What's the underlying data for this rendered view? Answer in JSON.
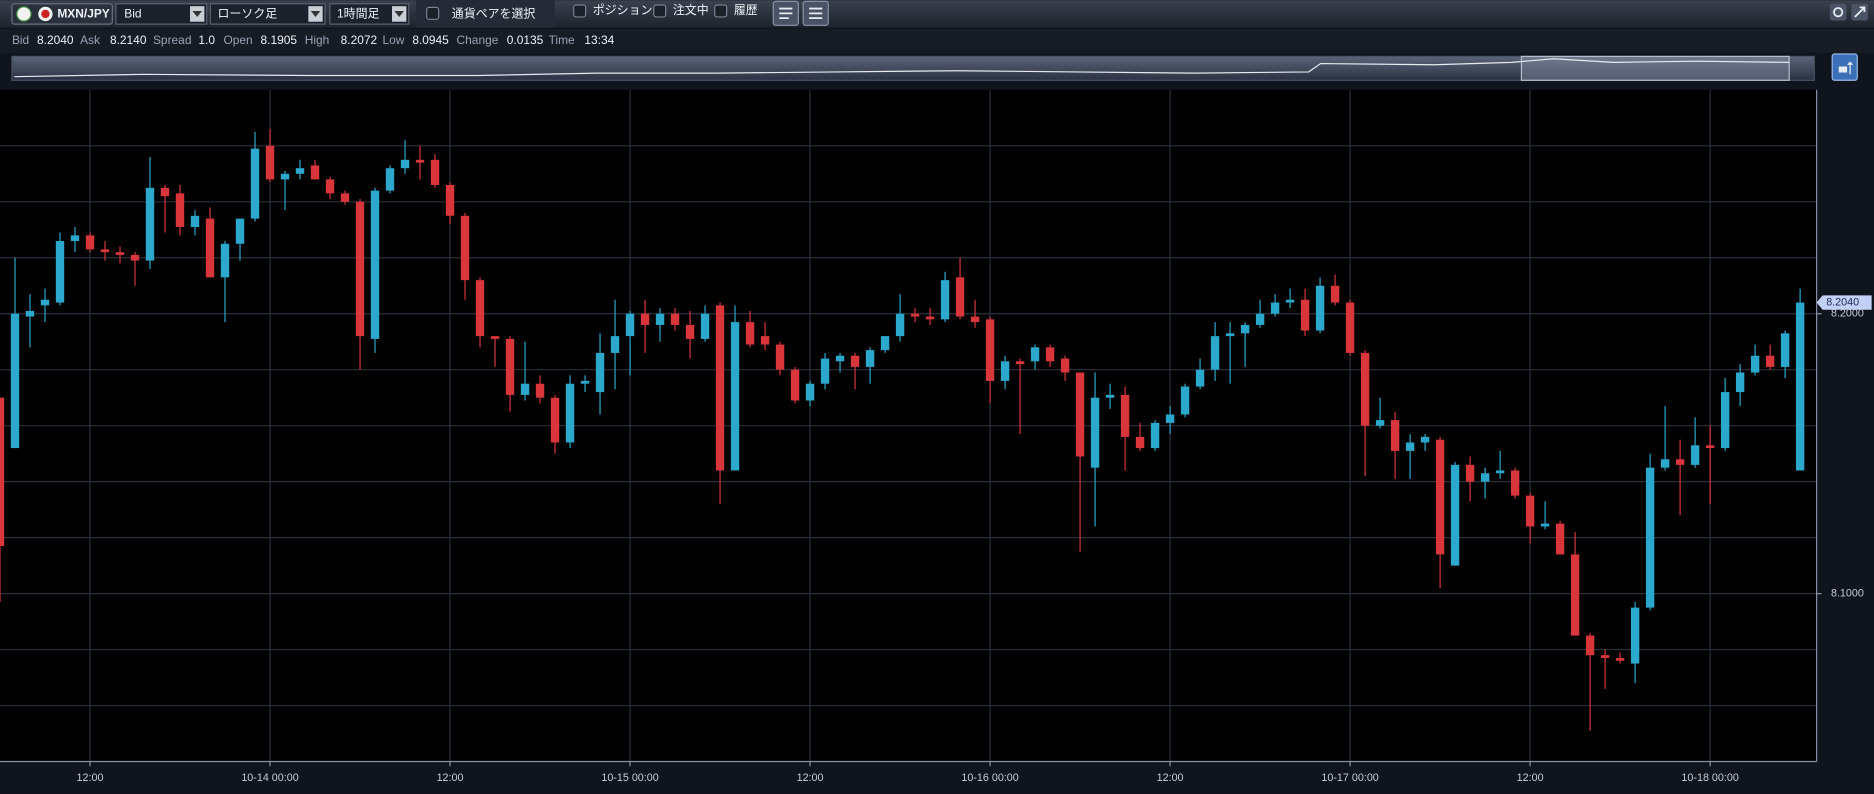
{
  "toolbar": {
    "pair": "MXN/JPY",
    "price_type": "Bid",
    "chart_type": "ローソク足",
    "timeframe": "1時間足",
    "pair_select": "通貨ペアを選択",
    "filters": [
      "ポジション",
      "注文中",
      "履歴"
    ]
  },
  "info": [
    {
      "label": "Bid",
      "value": "8.2040"
    },
    {
      "label": "Ask",
      "value": "8.2140"
    },
    {
      "label": "Spread",
      "value": "1.0"
    },
    {
      "label": "Open",
      "value": "8.1905"
    },
    {
      "label": "High",
      "value": "8.2072"
    },
    {
      "label": "Low",
      "value": "8.0945"
    },
    {
      "label": "Change",
      "value": "0.0135"
    },
    {
      "label": "Time",
      "value": "13:34"
    }
  ],
  "chart_data": {
    "type": "candlestick",
    "up_color": "#2ba8cc",
    "down_color": "#d8363b",
    "grid": true,
    "xlim": [
      0,
      121.1
    ],
    "xticks": [
      {
        "value": 6,
        "label": "12:00"
      },
      {
        "value": 18,
        "label": "10-14 00:00"
      },
      {
        "value": 30,
        "label": "12:00"
      },
      {
        "value": 42,
        "label": "10-15 00:00"
      },
      {
        "value": 54,
        "label": "12:00"
      },
      {
        "value": 66,
        "label": "10-16 00:00"
      },
      {
        "value": 78,
        "label": "12:00"
      },
      {
        "value": 90,
        "label": "10-17 00:00"
      },
      {
        "value": 102,
        "label": "12:00"
      },
      {
        "value": 114,
        "label": "10-18 00:00"
      }
    ],
    "ylim": [
      8.04,
      8.28
    ],
    "yticks": [
      {
        "value": 8.2,
        "label": "8.2000"
      },
      {
        "value": 8.1,
        "label": "8.1000"
      }
    ],
    "ygrid": [
      8.06,
      8.08,
      8.1,
      8.12,
      8.14,
      8.16,
      8.18,
      8.2,
      8.22,
      8.24,
      8.26
    ],
    "last_price": {
      "value": 8.204,
      "label": "8.2040"
    },
    "open": [
      8.17,
      8.152,
      8.199,
      8.203,
      8.204,
      8.226,
      8.228,
      8.223,
      8.222,
      8.221,
      8.219,
      8.245,
      8.243,
      8.231,
      8.234,
      8.213,
      8.225,
      8.234,
      8.26,
      8.248,
      8.25,
      8.253,
      8.248,
      8.243,
      8.24,
      8.191,
      8.244,
      8.252,
      8.255,
      8.255,
      8.246,
      8.235,
      8.212,
      8.192,
      8.191,
      8.171,
      8.175,
      8.17,
      8.154,
      8.175,
      8.172,
      8.186,
      8.192,
      8.2,
      8.196,
      8.2,
      8.196,
      8.191,
      8.203,
      8.144,
      8.197,
      8.192,
      8.189,
      8.18,
      8.169,
      8.175,
      8.183,
      8.185,
      8.181,
      8.187,
      8.192,
      8.2,
      8.199,
      8.198,
      8.213,
      8.199,
      8.198,
      8.176,
      8.183,
      8.183,
      8.188,
      8.184,
      8.179,
      8.145,
      8.17,
      8.171,
      8.156,
      8.152,
      8.161,
      8.164,
      8.174,
      8.18,
      8.192,
      8.193,
      8.196,
      8.2,
      8.204,
      8.205,
      8.194,
      8.21,
      8.204,
      8.186,
      8.16,
      8.162,
      8.151,
      8.154,
      8.155,
      8.11,
      8.146,
      8.14,
      8.143,
      8.144,
      8.135,
      8.124,
      8.125,
      8.114,
      8.085,
      8.078,
      8.077,
      8.075,
      8.095,
      8.145,
      8.148,
      8.146,
      8.153,
      8.152,
      8.172,
      8.179,
      8.185,
      8.181,
      8.144
    ],
    "high": [
      8.17,
      8.22,
      8.207,
      8.209,
      8.229,
      8.231,
      8.229,
      8.226,
      8.224,
      8.222,
      8.256,
      8.246,
      8.246,
      8.237,
      8.238,
      8.226,
      8.234,
      8.265,
      8.266,
      8.251,
      8.255,
      8.255,
      8.249,
      8.244,
      8.241,
      8.245,
      8.253,
      8.262,
      8.26,
      8.257,
      8.247,
      8.236,
      8.213,
      8.192,
      8.192,
      8.19,
      8.178,
      8.171,
      8.178,
      8.178,
      8.193,
      8.205,
      8.201,
      8.205,
      8.202,
      8.202,
      8.201,
      8.203,
      8.204,
      8.203,
      8.201,
      8.197,
      8.19,
      8.181,
      8.176,
      8.186,
      8.186,
      8.186,
      8.188,
      8.192,
      8.207,
      8.202,
      8.202,
      8.215,
      8.22,
      8.205,
      8.199,
      8.185,
      8.184,
      8.189,
      8.189,
      8.185,
      8.179,
      8.179,
      8.175,
      8.174,
      8.161,
      8.162,
      8.167,
      8.175,
      8.184,
      8.197,
      8.197,
      8.197,
      8.205,
      8.207,
      8.209,
      8.209,
      8.213,
      8.214,
      8.205,
      8.187,
      8.17,
      8.165,
      8.157,
      8.157,
      8.156,
      8.147,
      8.149,
      8.145,
      8.151,
      8.145,
      8.136,
      8.133,
      8.126,
      8.122,
      8.086,
      8.08,
      8.079,
      8.097,
      8.15,
      8.167,
      8.155,
      8.163,
      8.16,
      8.177,
      8.182,
      8.189,
      8.189,
      8.194,
      8.209
    ],
    "low": [
      8.097,
      8.152,
      8.188,
      8.197,
      8.203,
      8.222,
      8.222,
      8.219,
      8.218,
      8.21,
      8.216,
      8.229,
      8.228,
      8.228,
      8.213,
      8.197,
      8.219,
      8.233,
      8.247,
      8.237,
      8.248,
      8.248,
      8.241,
      8.239,
      8.18,
      8.186,
      8.243,
      8.25,
      8.248,
      8.245,
      8.232,
      8.205,
      8.188,
      8.181,
      8.165,
      8.169,
      8.168,
      8.15,
      8.152,
      8.172,
      8.164,
      8.173,
      8.178,
      8.186,
      8.19,
      8.194,
      8.184,
      8.19,
      8.132,
      8.144,
      8.188,
      8.187,
      8.178,
      8.168,
      8.167,
      8.173,
      8.179,
      8.173,
      8.175,
      8.186,
      8.19,
      8.197,
      8.196,
      8.197,
      8.198,
      8.195,
      8.168,
      8.173,
      8.157,
      8.18,
      8.181,
      8.176,
      8.115,
      8.124,
      8.166,
      8.144,
      8.151,
      8.151,
      8.157,
      8.163,
      8.173,
      8.176,
      8.175,
      8.181,
      8.195,
      8.199,
      8.202,
      8.192,
      8.193,
      8.203,
      8.185,
      8.142,
      8.159,
      8.141,
      8.141,
      8.151,
      8.102,
      8.11,
      8.133,
      8.134,
      8.141,
      8.134,
      8.118,
      8.123,
      8.114,
      8.085,
      8.051,
      8.066,
      8.075,
      8.068,
      8.094,
      8.144,
      8.128,
      8.145,
      8.132,
      8.151,
      8.167,
      8.178,
      8.18,
      8.177,
      8.144
    ],
    "close": [
      8.117,
      8.2,
      8.201,
      8.205,
      8.226,
      8.228,
      8.223,
      8.222,
      8.221,
      8.219,
      8.245,
      8.242,
      8.231,
      8.235,
      8.213,
      8.225,
      8.234,
      8.259,
      8.248,
      8.25,
      8.252,
      8.248,
      8.243,
      8.24,
      8.192,
      8.244,
      8.252,
      8.255,
      8.254,
      8.246,
      8.235,
      8.212,
      8.192,
      8.191,
      8.171,
      8.175,
      8.17,
      8.154,
      8.175,
      8.176,
      8.186,
      8.192,
      8.2,
      8.196,
      8.2,
      8.196,
      8.191,
      8.2,
      8.144,
      8.197,
      8.189,
      8.189,
      8.18,
      8.169,
      8.175,
      8.184,
      8.185,
      8.181,
      8.187,
      8.192,
      8.2,
      8.199,
      8.198,
      8.212,
      8.199,
      8.197,
      8.176,
      8.183,
      8.182,
      8.188,
      8.183,
      8.179,
      8.149,
      8.17,
      8.171,
      8.156,
      8.152,
      8.161,
      8.164,
      8.174,
      8.18,
      8.192,
      8.193,
      8.196,
      8.2,
      8.204,
      8.205,
      8.194,
      8.21,
      8.204,
      8.186,
      8.16,
      8.162,
      8.151,
      8.154,
      8.156,
      8.114,
      8.146,
      8.14,
      8.143,
      8.144,
      8.135,
      8.124,
      8.125,
      8.114,
      8.085,
      8.078,
      8.077,
      8.076,
      8.095,
      8.145,
      8.148,
      8.146,
      8.153,
      8.152,
      8.172,
      8.179,
      8.185,
      8.181,
      8.193,
      8.204
    ]
  }
}
